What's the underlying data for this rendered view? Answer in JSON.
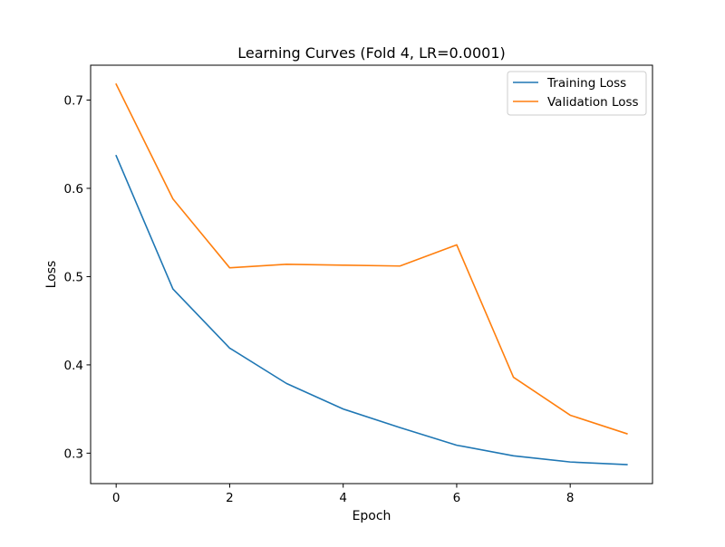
{
  "chart_data": {
    "type": "line",
    "title": "Learning Curves (Fold 4, LR=0.0001)",
    "xlabel": "Epoch",
    "ylabel": "Loss",
    "x": [
      0,
      1,
      2,
      3,
      4,
      5,
      6,
      7,
      8,
      9
    ],
    "xlim": [
      -0.45,
      9.45
    ],
    "ylim": [
      0.2655,
      0.7395
    ],
    "x_ticks": [
      0,
      2,
      4,
      6,
      8
    ],
    "y_ticks": [
      0.3,
      0.4,
      0.5,
      0.6,
      0.7
    ],
    "x_tick_labels": [
      "0",
      "2",
      "4",
      "6",
      "8"
    ],
    "y_tick_labels": [
      "0.3",
      "0.4",
      "0.5",
      "0.6",
      "0.7"
    ],
    "grid": false,
    "legend_position": "top-right",
    "series": [
      {
        "name": "Training Loss",
        "color": "#1f77b4",
        "values": [
          0.637,
          0.486,
          0.419,
          0.379,
          0.35,
          0.329,
          0.309,
          0.297,
          0.29,
          0.287
        ]
      },
      {
        "name": "Validation Loss",
        "color": "#ff7f0e",
        "values": [
          0.718,
          0.588,
          0.51,
          0.514,
          0.513,
          0.512,
          0.536,
          0.386,
          0.343,
          0.322
        ]
      }
    ]
  }
}
